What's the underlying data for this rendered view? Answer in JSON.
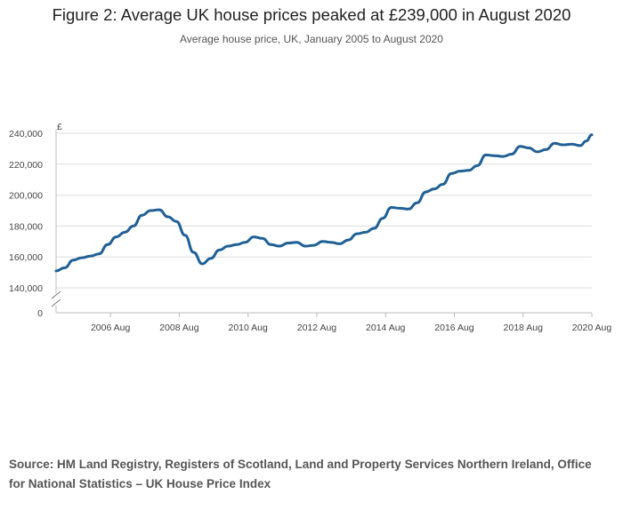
{
  "title": "Figure 2: Average UK house prices peaked at £239,000 in August 2020",
  "subtitle": "Average house price, UK, January 2005 to August 2020",
  "source": "Source: HM Land Registry, Registers of Scotland, Land and Property Services Northern Ireland, Office for National Statistics – UK House Price Index",
  "colors": {
    "line": "#206095",
    "grid": "#dddddd",
    "axis": "#bbbbbb"
  },
  "chart_data": {
    "type": "line",
    "title": "Figure 2: Average UK house prices peaked at £239,000 in August 2020",
    "subtitle": "Average house price, UK, January 2005 to August 2020",
    "ylabel": "£",
    "xlabel": "",
    "ylim": [
      140000,
      240000
    ],
    "axis_break": true,
    "y_ticks": [
      0,
      140000,
      160000,
      180000,
      200000,
      220000,
      240000
    ],
    "y_tick_labels": [
      "0",
      "140,000",
      "160,000",
      "180,000",
      "200,000",
      "220,000",
      "240,000"
    ],
    "x_ticks": [
      "2006 Aug",
      "2008 Aug",
      "2010 Aug",
      "2012 Aug",
      "2014 Aug",
      "2016 Aug",
      "2018 Aug",
      "2020 Aug"
    ],
    "grid": true,
    "series": [
      {
        "name": "Average house price",
        "points": [
          [
            "2005-01",
            151000
          ],
          [
            "2005-04",
            153000
          ],
          [
            "2005-07",
            158000
          ],
          [
            "2005-10",
            159500
          ],
          [
            "2006-01",
            160500
          ],
          [
            "2006-04",
            162000
          ],
          [
            "2006-07",
            168000
          ],
          [
            "2006-10",
            173000
          ],
          [
            "2007-01",
            176000
          ],
          [
            "2007-04",
            180000
          ],
          [
            "2007-07",
            187000
          ],
          [
            "2007-10",
            190000
          ],
          [
            "2008-01",
            190500
          ],
          [
            "2008-04",
            186000
          ],
          [
            "2008-07",
            183000
          ],
          [
            "2008-10",
            174000
          ],
          [
            "2009-01",
            163000
          ],
          [
            "2009-04",
            155500
          ],
          [
            "2009-07",
            159000
          ],
          [
            "2009-10",
            164500
          ],
          [
            "2010-01",
            167000
          ],
          [
            "2010-04",
            168000
          ],
          [
            "2010-07",
            169500
          ],
          [
            "2010-10",
            173000
          ],
          [
            "2011-01",
            172000
          ],
          [
            "2011-04",
            168000
          ],
          [
            "2011-07",
            167000
          ],
          [
            "2011-10",
            169000
          ],
          [
            "2012-01",
            169500
          ],
          [
            "2012-04",
            167000
          ],
          [
            "2012-07",
            167500
          ],
          [
            "2012-10",
            170000
          ],
          [
            "2013-01",
            169500
          ],
          [
            "2013-04",
            168500
          ],
          [
            "2013-07",
            171000
          ],
          [
            "2013-10",
            175000
          ],
          [
            "2014-01",
            176000
          ],
          [
            "2014-04",
            178500
          ],
          [
            "2014-07",
            185000
          ],
          [
            "2014-10",
            192000
          ],
          [
            "2015-01",
            191500
          ],
          [
            "2015-04",
            191000
          ],
          [
            "2015-07",
            195000
          ],
          [
            "2015-10",
            202000
          ],
          [
            "2016-01",
            204000
          ],
          [
            "2016-04",
            207000
          ],
          [
            "2016-07",
            214000
          ],
          [
            "2016-10",
            215500
          ],
          [
            "2017-01",
            216000
          ],
          [
            "2017-04",
            219000
          ],
          [
            "2017-07",
            226000
          ],
          [
            "2017-10",
            225500
          ],
          [
            "2018-01",
            225000
          ],
          [
            "2018-04",
            226500
          ],
          [
            "2018-07",
            231500
          ],
          [
            "2018-10",
            230500
          ],
          [
            "2019-01",
            228000
          ],
          [
            "2019-04",
            229500
          ],
          [
            "2019-07",
            233500
          ],
          [
            "2019-10",
            232500
          ],
          [
            "2020-01",
            233000
          ],
          [
            "2020-04",
            232000
          ],
          [
            "2020-06",
            235000
          ],
          [
            "2020-08",
            239000
          ]
        ]
      }
    ]
  }
}
